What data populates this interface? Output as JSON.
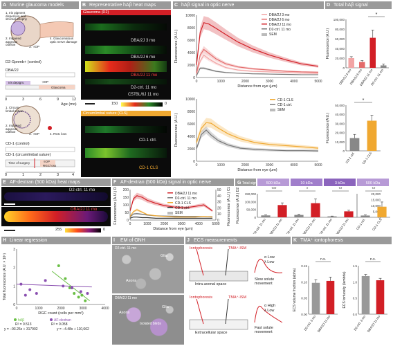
{
  "panelA": {
    "letter": "A",
    "title": "Murine glaucoma models",
    "steps_d2": [
      "1. Iris pigment dispersion and stromal atrophy",
      "2. Impaired aqueous outflow",
      "3. ↑IOP",
      "4. Glaucomatous optic nerve damage"
    ],
    "d2_control": "D2-Gpnmb+ (control)",
    "d2": "DBA/2J",
    "iris_depigm": "Iris depigm.",
    "iop": "↑IOP",
    "glaucoma": "Glaucoma",
    "age_ticks": [
      "0",
      "3",
      "6",
      "9",
      "12"
    ],
    "age_label": "Age (mo)",
    "steps_cls": [
      "1. Circum-limbal suture",
      "2. Impaired aqueous outflow",
      "3. ↑IOP",
      "4. RGC loss"
    ],
    "cd1_control": "CD-1 (control)",
    "cd1_cls": "CD-1 (circumlimbal suture)",
    "time_of_surgery": "Time of surgery",
    "cls_iop": "↑IOP",
    "rgc_loss": "RGC loss",
    "age_ticks2": [
      "0",
      "1",
      "2",
      "3",
      "4"
    ],
    "age_label2": "Age (mo)"
  },
  "panelB": {
    "letter": "B",
    "title": "Representative hAβ heat maps",
    "d2_header": "Glaucoma (D2)",
    "maps": [
      "DBA/2J 3 mo",
      "DBA/2J 6 mo",
      "DBA/2J 11 mo",
      "D2-ctrl. 11 mo",
      "C57BL/6J 11 mo"
    ],
    "scale_min": "150",
    "scale_max": "0",
    "cls_header": "Circumlimbal suture (CLS)",
    "cls_maps": [
      "CD-1 ctrl.",
      "CD-1 CLS"
    ]
  },
  "panelC": {
    "letter": "C",
    "title": "hAβ signal in optic nerve",
    "chart_data": [
      {
        "type": "line",
        "xlabel": "Distance from eye (μm)",
        "ylabel": "Fluorescence (A.U.)",
        "xlim": [
          0,
          5000
        ],
        "ylim": [
          0,
          10000
        ],
        "xticks": [
          "0",
          "1000",
          "2000",
          "3000",
          "4000",
          "5000"
        ],
        "yticks": [
          "0",
          "2000",
          "4000",
          "6000",
          "8000",
          "10000"
        ],
        "legend": [
          "DBA/2J 3 mo",
          "DBA/2J 6 mo",
          "DBA/2J 11 mo",
          "D2-ctrl. 11 mo",
          "SEM"
        ],
        "series": [
          {
            "name": "DBA/2J 3 mo",
            "color": "#f2a5a5",
            "x": [
              0,
              150,
              300,
              500,
              800,
              1200,
              1700,
              2300,
              3000,
              3700,
              4300,
              5000
            ],
            "y": [
              500,
              2600,
              3600,
              3000,
              2300,
              1600,
              1200,
              1000,
              900,
              800,
              700,
              650
            ]
          },
          {
            "name": "DBA/2J 6 mo",
            "color": "#e46a6a",
            "x": [
              0,
              150,
              300,
              500,
              800,
              1200,
              1700,
              2300,
              3000,
              3700,
              4300,
              5000
            ],
            "y": [
              700,
              3600,
              4500,
              3900,
              3000,
              2200,
              1700,
              1400,
              1200,
              1000,
              900,
              850
            ]
          },
          {
            "name": "DBA/2J 11 mo",
            "color": "#d21f26",
            "x": [
              0,
              150,
              300,
              500,
              800,
              1200,
              1700,
              2300,
              3000,
              3700,
              4300,
              5000
            ],
            "y": [
              2000,
              7200,
              8800,
              8600,
              7900,
              6900,
              5700,
              4600,
              3600,
              2800,
              2200,
              1800
            ]
          },
          {
            "name": "D2-ctrl. 11 mo",
            "color": "#777777",
            "x": [
              0,
              150,
              300,
              500,
              800,
              1200,
              1700,
              2300,
              3000,
              3700,
              4300,
              5000
            ],
            "y": [
              300,
              1500,
              1500,
              1300,
              1000,
              800,
              700,
              600,
              550,
              500,
              450,
              450
            ]
          }
        ]
      },
      {
        "type": "line",
        "xlabel": "Distance from eye (μm)",
        "ylabel": "Fluorescence (A.U.)",
        "xlim": [
          0,
          5000
        ],
        "ylim": [
          0,
          10000
        ],
        "xticks": [
          "0",
          "1000",
          "2000",
          "3000",
          "4000",
          "5000"
        ],
        "yticks": [
          "0",
          "2000",
          "4000",
          "6000",
          "8000",
          "10000"
        ],
        "legend": [
          "CD-1 CLS",
          "CD-1 ctrl.",
          "SEM"
        ],
        "series": [
          {
            "name": "CD-1 CLS",
            "color": "#f0a830",
            "x": [
              0,
              200,
              400,
              600,
              900,
              1300,
              1800,
              2400,
              3000,
              3700,
              4400,
              5000
            ],
            "y": [
              3000,
              5300,
              6200,
              6100,
              5300,
              4400,
              3600,
              3000,
              2700,
              2500,
              2300,
              2100
            ]
          },
          {
            "name": "CD-1 ctrl.",
            "color": "#777777",
            "x": [
              0,
              200,
              400,
              600,
              900,
              1300,
              1800,
              2400,
              3000,
              3700,
              4400,
              5000
            ],
            "y": [
              2000,
              4300,
              5000,
              4200,
              3300,
              2600,
              2100,
              1900,
              1800,
              1700,
              1700,
              1650
            ]
          }
        ]
      }
    ]
  },
  "panelD": {
    "letter": "D",
    "title": "Total hAβ signal",
    "star": "*",
    "chart_data": [
      {
        "type": "bar",
        "ylabel": "Fluorescence (A.U.)",
        "ylim": [
          0,
          100000
        ],
        "yticks": [
          "0",
          "20,000",
          "40,000",
          "60,000",
          "80,000",
          "100,000"
        ],
        "categories": [
          "DBA/2J 3 mo",
          "DBA/2J 6 mo",
          "DBA/2J 11 mo",
          "D2-ctrl. 11 mo"
        ],
        "values": [
          20000,
          12000,
          62000,
          5000
        ],
        "errors": [
          3000,
          3000,
          16000,
          2500
        ],
        "colors": [
          "#f2a5a5",
          "#e46a6a",
          "#d21f26",
          "#888888"
        ]
      },
      {
        "type": "bar",
        "ylabel": "Fluorescence (A.U.)",
        "ylim": [
          0,
          50000
        ],
        "yticks": [
          "0",
          "10,000",
          "20,000",
          "30,000",
          "40,000",
          "50,000"
        ],
        "categories": [
          "CD-1 ctrl.",
          "CD-1 CLS"
        ],
        "values": [
          14000,
          33000
        ],
        "errors": [
          4000,
          6000
        ],
        "colors": [
          "#888888",
          "#f0a830"
        ]
      }
    ]
  },
  "panelE": {
    "letter": "E",
    "title": "AF-dextran (500 kDa) heat maps",
    "map1": "D2-ctrl. 11 mo",
    "map2": "DBA/2J 11 mo",
    "scale_min": "255",
    "scale_max": "0"
  },
  "panelF": {
    "letter": "F",
    "title": "AF-dextran (500 kDa) signal in optic nerve",
    "chart_data": {
      "type": "line",
      "xlabel": "Distance from eye (μm)",
      "ylabel_left": "Fluorescence (A.U.) D2",
      "ylabel_right": "Fluorescence (A.U.) CLS",
      "xlim": [
        0,
        5000
      ],
      "ylim_left": [
        0,
        200
      ],
      "ylim_right": [
        0,
        50
      ],
      "xticks": [
        "0",
        "1000",
        "2000",
        "3000",
        "4000",
        "5000"
      ],
      "yticks_left": [
        "0",
        "50",
        "100",
        "150",
        "200"
      ],
      "yticks_right": [
        "0",
        "10",
        "20",
        "30",
        "40",
        "50"
      ],
      "legend": [
        "DBA/2J 11 mo",
        "D2-ctrl. 11 mo",
        "CD-1 CLS",
        "CD-1 ctrl.",
        "SEM"
      ],
      "series": [
        {
          "name": "DBA/2J 11 mo",
          "axis": "left",
          "color": "#d21f26",
          "x": [
            0,
            200,
            400,
            700,
            1000,
            1500,
            2000,
            2600,
            3200,
            3800,
            4300,
            4800
          ],
          "y": [
            60,
            140,
            160,
            150,
            130,
            110,
            95,
            85,
            80,
            90,
            100,
            60
          ]
        },
        {
          "name": "D2-ctrl. 11 mo",
          "axis": "left",
          "color": "#777777",
          "x": [
            0,
            200,
            400,
            700,
            1000,
            1500,
            2000,
            2600,
            3200,
            3800,
            4300,
            4800
          ],
          "y": [
            20,
            40,
            42,
            38,
            33,
            28,
            26,
            25,
            24,
            24,
            23,
            22
          ]
        },
        {
          "name": "CD-1 CLS",
          "axis": "right",
          "color": "#f0a830",
          "x": [
            0,
            200,
            400,
            700,
            1000,
            1500,
            2000,
            2600,
            3200,
            3800,
            4300,
            4800
          ],
          "y": [
            6,
            14,
            17,
            13,
            9,
            7,
            6,
            5,
            5,
            5,
            6,
            5
          ]
        },
        {
          "name": "CD-1 ctrl.",
          "axis": "right",
          "color": "#333333",
          "x": [
            0,
            200,
            400,
            700,
            1000,
            1500,
            2000,
            2600,
            3200,
            3800,
            4300,
            4800
          ],
          "y": [
            3,
            5,
            5,
            4,
            4,
            3,
            3,
            3,
            3,
            3,
            3,
            3
          ]
        }
      ]
    }
  },
  "panelG": {
    "letter": "G",
    "total_signal": "Total signal",
    "sizes": [
      "500 kDa",
      "10 kDa",
      "3 kDa",
      "500 kDa"
    ],
    "size_colors": [
      "#b79ad6",
      "#a07ecb",
      "#8b64bd",
      "#b79ad6"
    ],
    "stars": [
      "***",
      "*",
      "**",
      "**"
    ],
    "chart_data": {
      "type": "bar",
      "ylabel_left": "Fluorescence (A.U.) D2",
      "ylabel_right": "Fluorescence (A.U.) CLS",
      "ylim_left": [
        0,
        150000
      ],
      "ylim_right": [
        0,
        20000
      ],
      "yticks_left": [
        "0",
        "50,000",
        "100,000",
        "150,000"
      ],
      "yticks_right": [
        "0",
        "5,000",
        "10,000",
        "15,000",
        "20,000"
      ],
      "categories": [
        "D2-ctrl. 11 mo",
        "DBA/2J 11 mo",
        "D2-ctrl. 11 mo",
        "DBA/2J 11 mo",
        "D2-ctrl. 11 mo",
        "DBA/2J 11 mo",
        "CD-1 ctrl.",
        "CD-1 CLS"
      ],
      "values": [
        12000,
        78000,
        15000,
        90000,
        6000,
        38000,
        1500,
        9000
      ],
      "errors": [
        3000,
        14000,
        4000,
        28000,
        2000,
        7000,
        500,
        4000
      ],
      "axes": [
        "left",
        "left",
        "left",
        "left",
        "left",
        "left",
        "right",
        "right"
      ],
      "colors": [
        "#888888",
        "#d21f26",
        "#888888",
        "#d21f26",
        "#888888",
        "#d21f26",
        "#888888",
        "#f0a830"
      ]
    }
  },
  "panelH": {
    "letter": "H",
    "title": "Linear regression",
    "stat1_r2": "R² = 0.513",
    "stat1_eq": "y = −93.26x + 317902",
    "stat2_r2": "R² = 0.058",
    "stat2_eq": "y = −4.48x + 110,662",
    "chart_data": {
      "type": "scatter",
      "xlabel": "RGC count (cells per mm²)",
      "ylabel": "Total fluorescence (A.U. × 10⁵)",
      "xlim": [
        0,
        4000
      ],
      "ylim": [
        0,
        3
      ],
      "xticks": [
        "0",
        "1000",
        "2000",
        "3000",
        "4000"
      ],
      "yticks": [
        "0",
        "1",
        "2",
        "3"
      ],
      "legend": [
        "hAβ",
        "AF-dextran"
      ],
      "series": [
        {
          "name": "hAβ",
          "color": "#6abf45",
          "x": [
            1900,
            2200,
            2400,
            2600,
            2800,
            2950,
            3100
          ],
          "y": [
            2.1,
            1.4,
            0.9,
            0.6,
            0.4,
            0.5,
            0.2
          ],
          "fit": [
            [
              1600,
              1.8
            ],
            [
              3300,
              0.2
            ]
          ]
        },
        {
          "name": "AF-dextran",
          "color": "#8a4fb0",
          "x": [
            200,
            400,
            600,
            900,
            1300,
            2100,
            2500,
            2900,
            3200
          ],
          "y": [
            1.1,
            0.5,
            0.8,
            0.6,
            1.3,
            1.0,
            0.9,
            0.7,
            0.6
          ],
          "fit": [
            [
              0,
              1.1
            ],
            [
              3400,
              0.95
            ]
          ]
        }
      ]
    }
  },
  "panelI": {
    "letter": "I",
    "title": "EM of ONH",
    "img1_label": "D2-ctrl. 11 mo",
    "img2_label": "DBA/2J 11 mo",
    "glia": "Glia",
    "glia2": "Glia",
    "axons": "Axons",
    "axons2": "Axons",
    "isolated_blebs": "Isolated blebs"
  },
  "panelJ": {
    "letter": "J",
    "title": "ECS measurements",
    "iontophoresis": "Iontophoresis",
    "tma_ism": "TMA⁺-ISM",
    "alpha_low": "α Low",
    "lambda_low": "λ Low",
    "intra_axonal": "Intra-axonal space",
    "slow": "Slow solute movement",
    "iontophoresis2": "Iontophoresis",
    "tma_ism2": "TMA⁺-ISM",
    "alpha_high": "α High",
    "lambda_low2": "λ Low",
    "extracellular": "Extracellular space",
    "fast": "Fast solute movement"
  },
  "panelK": {
    "letter": "K",
    "title": "TMA⁺ iontophoresis",
    "ns1": "n.s.",
    "ns2": "n.s.",
    "chart_data": [
      {
        "type": "bar",
        "ylabel": "ECS volume fraction (alpha)",
        "ylim": [
          0,
          0.15
        ],
        "yticks": [
          "0.00",
          "0.05",
          "0.10",
          "0.15"
        ],
        "categories": [
          "D2-ctrl. 3 mo",
          "DBA/2J 11 mo"
        ],
        "values": [
          0.097,
          0.103
        ],
        "errors": [
          0.01,
          0.012
        ],
        "colors": [
          "#999999",
          "#d21f26"
        ]
      },
      {
        "type": "bar",
        "ylabel": "ECS tortuosity (lambda)",
        "ylim": [
          0,
          1.5
        ],
        "yticks": [
          "0.0",
          "0.5",
          "1.0",
          "1.5"
        ],
        "categories": [
          "D2-ctrl. 3 mo",
          "DBA/2J 11 mo"
        ],
        "values": [
          1.18,
          1.05
        ],
        "errors": [
          0.05,
          0.06
        ],
        "colors": [
          "#999999",
          "#d21f26"
        ]
      }
    ]
  }
}
